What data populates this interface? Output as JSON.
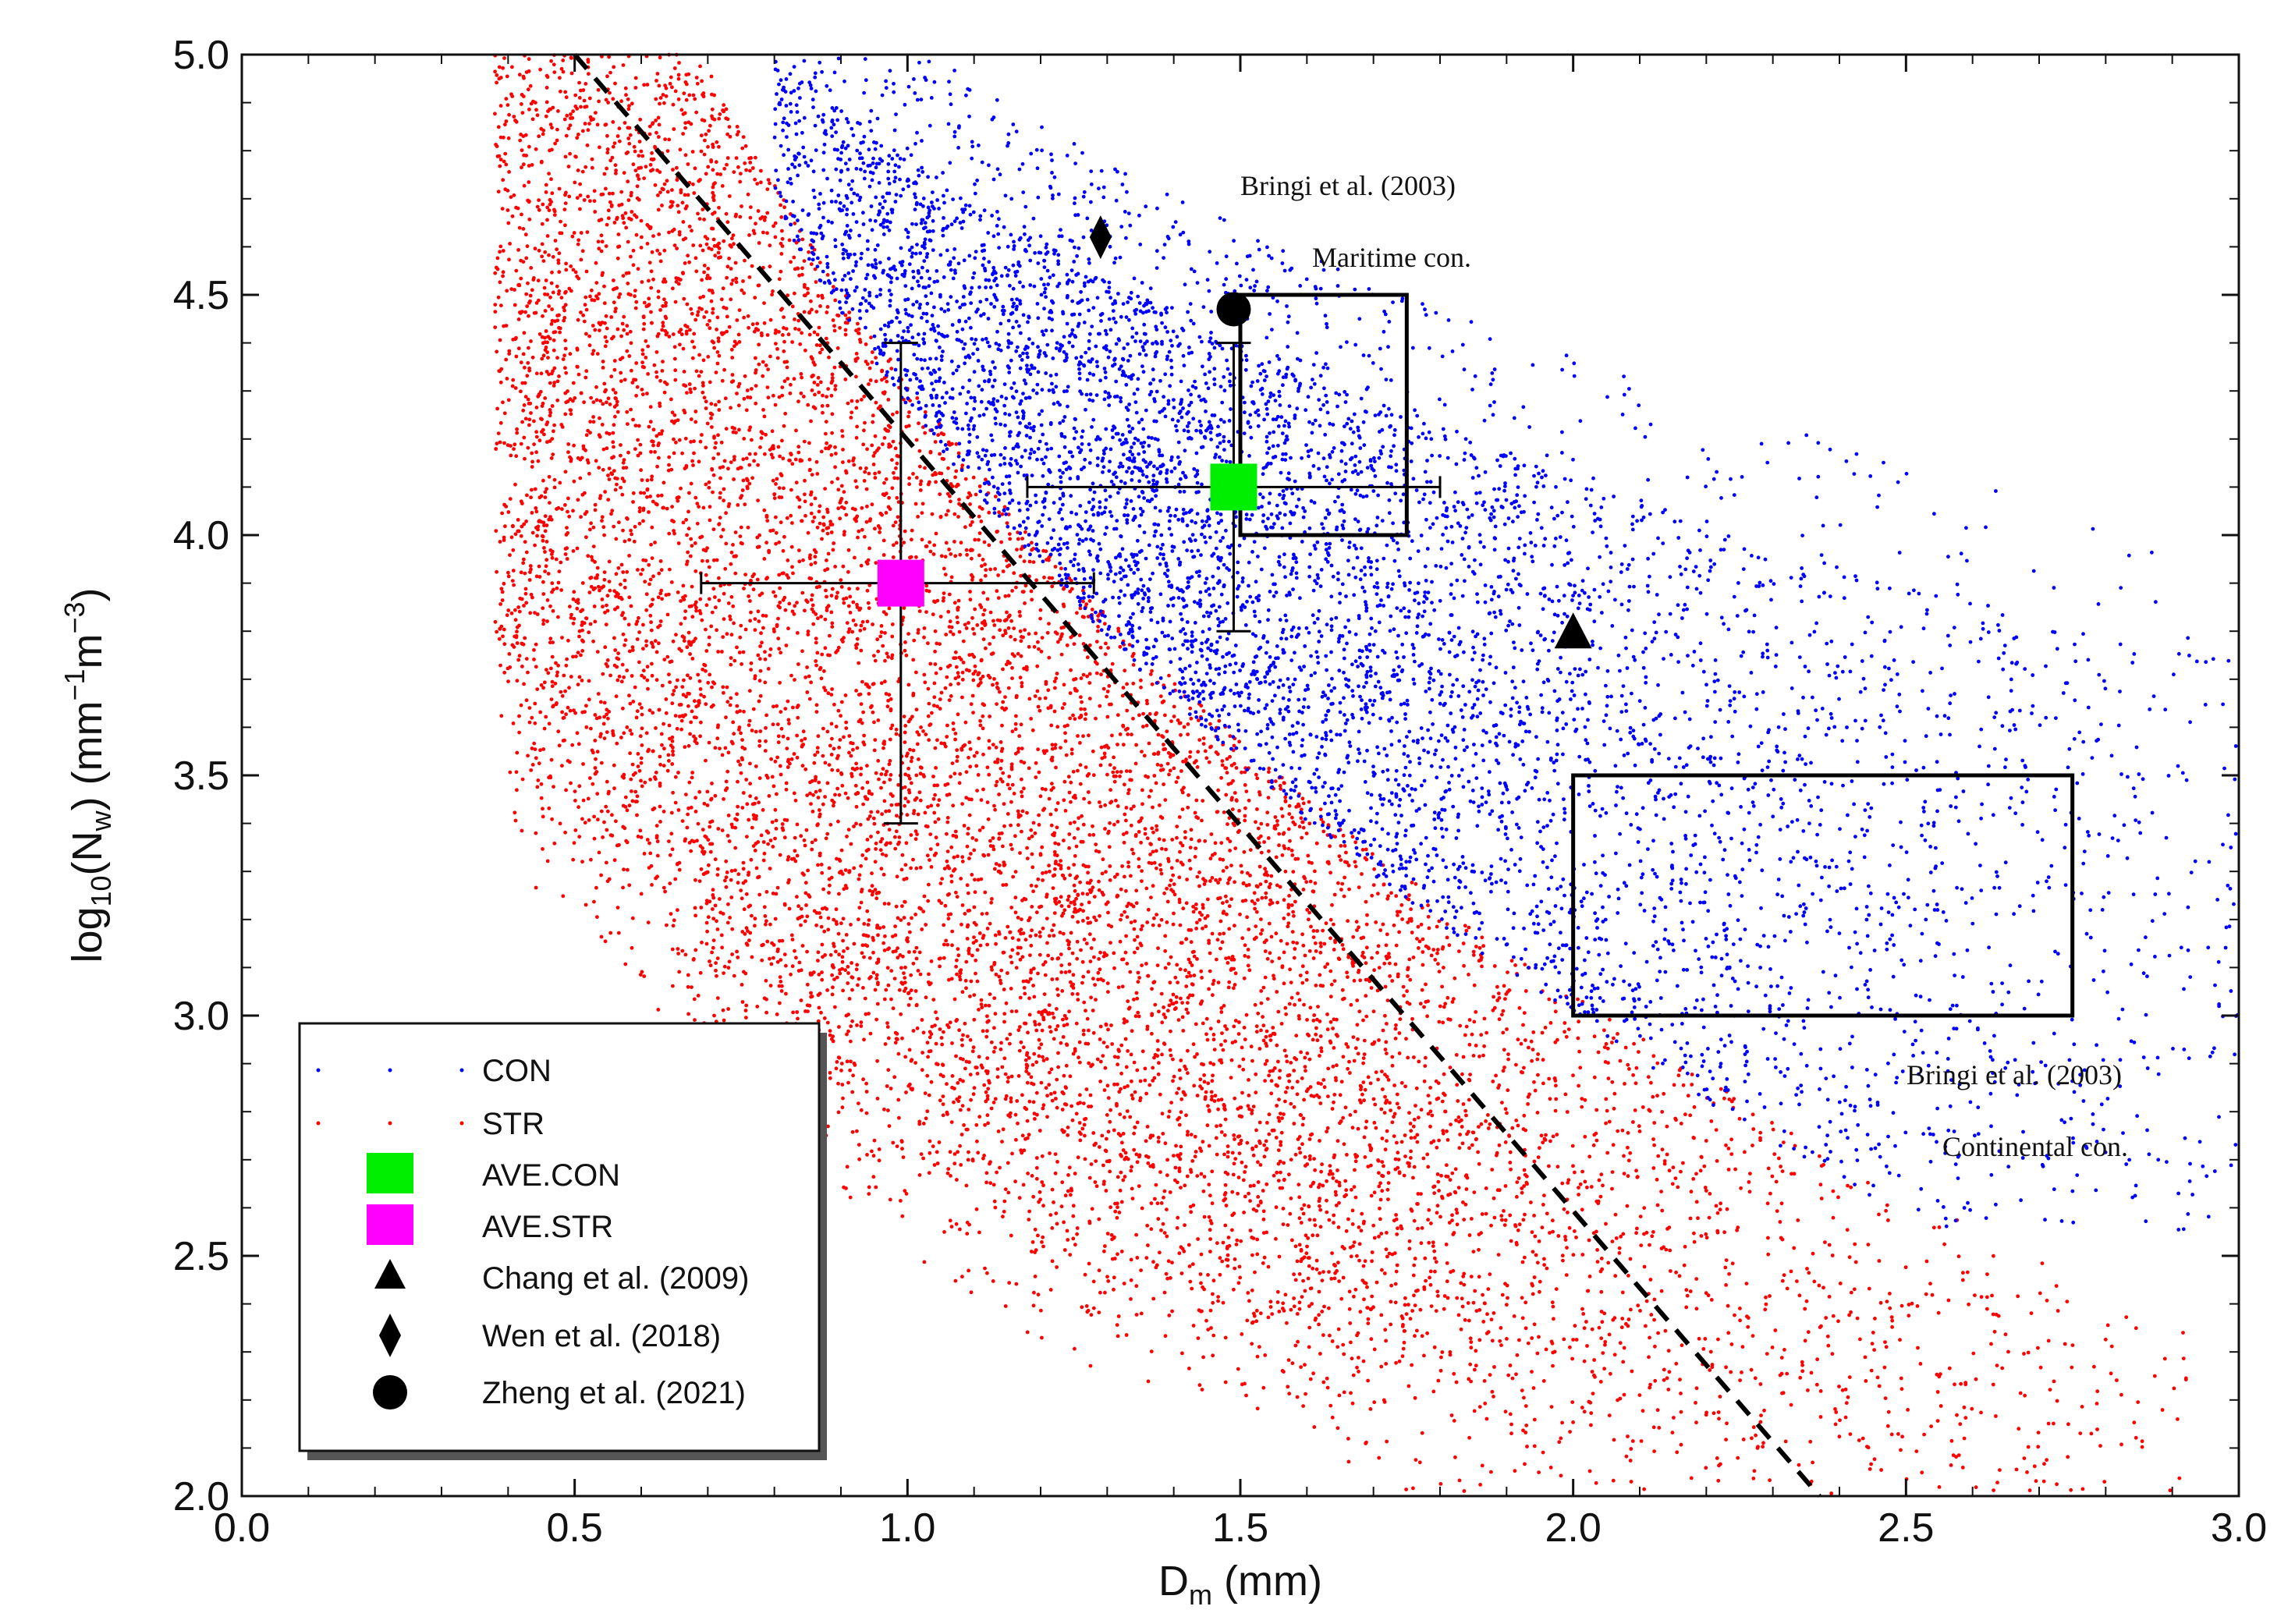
{
  "chart_data": {
    "type": "scatter",
    "xlabel": "D",
    "xlabel_sub": "m",
    "xlabel_unit": " (mm)",
    "ylabel_parts": {
      "base": "log",
      "base_sub": "10",
      "var": "(N",
      "var_sub": "w",
      "unit_open": ") (mm",
      "exp1": "−1",
      "mid": "m",
      "exp2": "−3",
      "close": ")"
    },
    "xlim": [
      0.0,
      3.0
    ],
    "ylim": [
      2.0,
      5.0
    ],
    "x_ticks": [
      "0.0",
      "0.5",
      "1.0",
      "1.5",
      "2.0",
      "2.5",
      "3.0"
    ],
    "y_ticks": [
      "2.0",
      "2.5",
      "3.0",
      "3.5",
      "4.0",
      "4.5",
      "5.0"
    ],
    "series": [
      {
        "name": "CON",
        "color": "#0000ff",
        "kind": "scatter-cloud",
        "dm_range": [
          0.8,
          3.0
        ],
        "log10nw_range": [
          2.6,
          5.0
        ]
      },
      {
        "name": "STR",
        "color": "#ff0000",
        "kind": "scatter-cloud",
        "dm_range": [
          0.4,
          2.9
        ],
        "log10nw_range": [
          2.0,
          5.0
        ]
      }
    ],
    "averages": [
      {
        "name": "AVE.CON",
        "color": "#00ee00",
        "x": 1.49,
        "y": 4.1,
        "x_err": [
          1.18,
          1.8
        ],
        "y_err": [
          3.8,
          4.4
        ]
      },
      {
        "name": "AVE.STR",
        "color": "#ff00ff",
        "x": 0.99,
        "y": 3.9,
        "x_err": [
          0.69,
          1.28
        ],
        "y_err": [
          3.4,
          4.4
        ]
      }
    ],
    "reference_points": [
      {
        "name": "Chang et al. (2009)",
        "marker": "triangle",
        "x": 2.0,
        "y": 3.8
      },
      {
        "name": "Wen et al. (2018)",
        "marker": "diamond",
        "x": 1.29,
        "y": 4.62
      },
      {
        "name": "Zheng et al. (2021)",
        "marker": "circle",
        "x": 1.49,
        "y": 4.47
      }
    ],
    "regions": [
      {
        "name": "Maritime con.",
        "source": "Bringi et al. (2003)",
        "x_range": [
          1.5,
          1.75
        ],
        "y_range": [
          4.0,
          4.5
        ]
      },
      {
        "name": "Continental con.",
        "source": "Bringi et al. (2003)",
        "x_range": [
          2.0,
          2.75
        ],
        "y_range": [
          3.0,
          3.5
        ]
      }
    ],
    "separator_line": {
      "style": "dashed",
      "points": [
        [
          0.5,
          5.0
        ],
        [
          2.37,
          2.0
        ]
      ]
    },
    "legend": {
      "position": "bottom-left",
      "entries": [
        "CON",
        "STR",
        "AVE.CON",
        "AVE.STR",
        "Chang et al. (2009)",
        "Wen et al. (2018)",
        "Zheng et al. (2021)"
      ]
    }
  }
}
